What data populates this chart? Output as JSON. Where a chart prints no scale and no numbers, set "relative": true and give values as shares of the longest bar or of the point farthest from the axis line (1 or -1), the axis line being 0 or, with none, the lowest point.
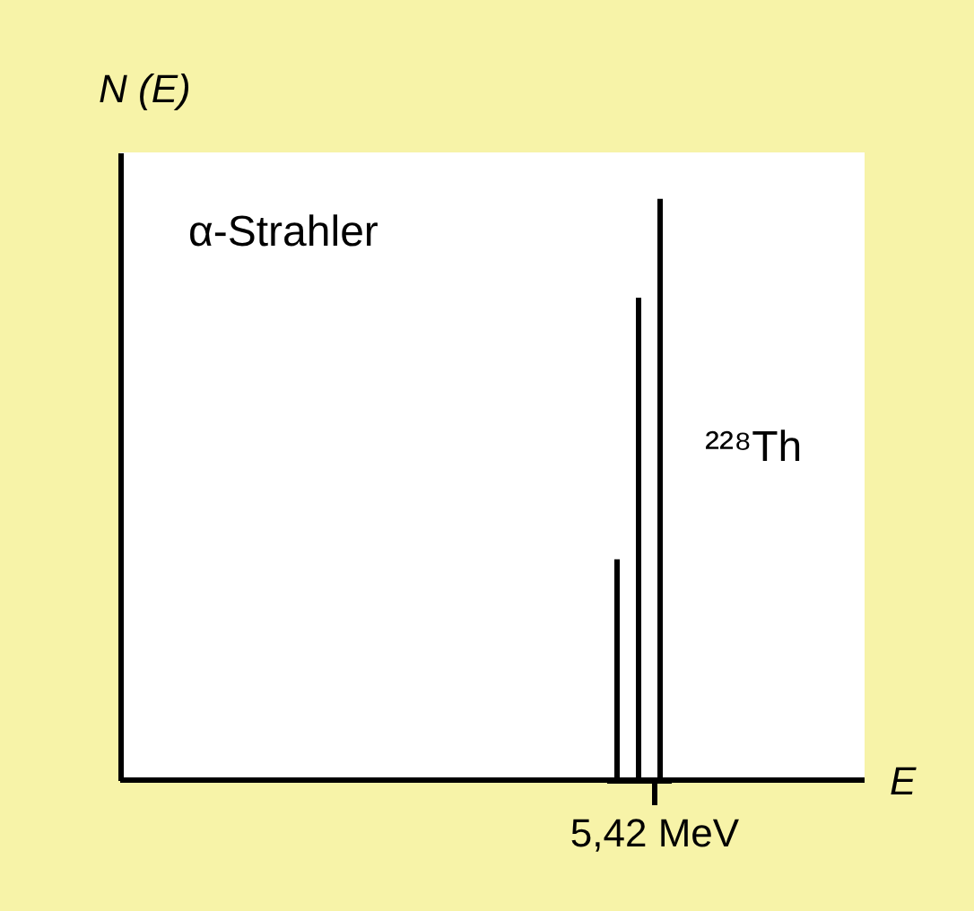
{
  "chart_data": {
    "type": "bar",
    "relative": true,
    "categories": [
      null,
      null,
      null
    ],
    "values": [
      0.38,
      0.83,
      1
    ],
    "color": "#000000",
    "annotations": [
      "N (E)",
      "α-Strahler",
      "²²⁸Th",
      "5,42 MeV",
      "E"
    ]
  }
}
